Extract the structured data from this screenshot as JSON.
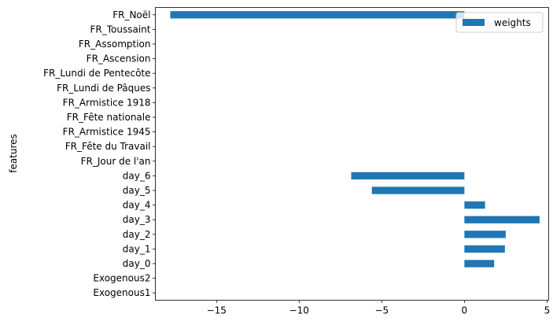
{
  "chart_data": {
    "type": "bar",
    "orientation": "horizontal",
    "categories": [
      "Exogenous1",
      "Exogenous2",
      "day_0",
      "day_1",
      "day_2",
      "day_3",
      "day_4",
      "day_5",
      "day_6",
      "FR_Jour de l'an",
      "FR_Fête du Travail",
      "FR_Armistice 1945",
      "FR_Fête nationale",
      "FR_Armistice 1918",
      "FR_Lundi de Pâques",
      "FR_Lundi de Pentecôte",
      "FR_Ascension",
      "FR_Assomption",
      "FR_Toussaint",
      "FR_Noël"
    ],
    "series": [
      {
        "name": "weights",
        "color": "#1f77b4",
        "values": [
          0,
          0,
          1.8,
          2.45,
          2.5,
          4.55,
          1.25,
          -5.6,
          -6.85,
          0,
          0,
          0,
          0,
          0,
          0,
          0,
          0,
          0,
          0,
          -17.8
        ]
      }
    ],
    "ylabel": "features",
    "xlabel": "",
    "xlim": [
      -18.7,
      5.1
    ],
    "xticks": [
      -15,
      -10,
      -5,
      0,
      5
    ],
    "xtick_labels": [
      "−15",
      "−10",
      "−5",
      "0",
      "5"
    ],
    "grid": false,
    "legend_position": "top-right"
  }
}
